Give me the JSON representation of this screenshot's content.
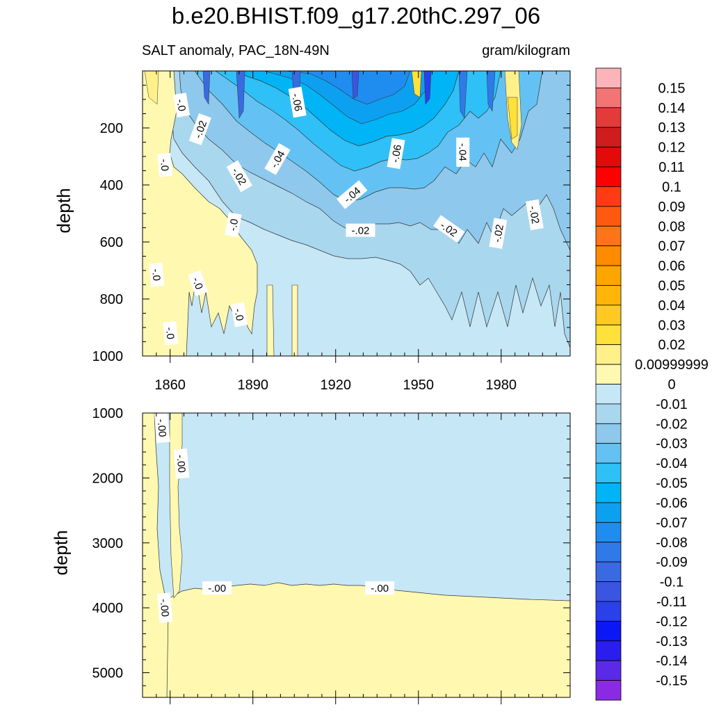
{
  "figure": {
    "title": "b.e20.BHIST.f09_g17.20thC.297_06",
    "subtitle_left": "SALT anomaly, PAC_18N-49N",
    "subtitle_right": "gram/kilogram"
  },
  "chart_data": [
    {
      "type": "contour",
      "panel": "upper",
      "ylabel": "depth",
      "xlabel": "",
      "xlim": [
        1850,
        2005
      ],
      "ylim": [
        1000,
        0
      ],
      "xticks": [
        1860,
        1890,
        1920,
        1950,
        1980
      ],
      "xtick_labels": [
        "1860",
        "1890",
        "1920",
        "1950",
        "1980"
      ],
      "yticks": [
        200,
        400,
        600,
        800,
        1000
      ],
      "ytick_labels": [
        "200",
        "400",
        "600",
        "800",
        "1000"
      ],
      "contour_labels": [
        {
          "text": "-.0",
          "x": 1864,
          "y": 120,
          "angle": 80
        },
        {
          "text": "-.02",
          "x": 1871,
          "y": 205,
          "angle": -70
        },
        {
          "text": "-.0",
          "x": 1858,
          "y": 330,
          "angle": 85
        },
        {
          "text": "-.06",
          "x": 1906,
          "y": 110,
          "angle": 80
        },
        {
          "text": "-.04",
          "x": 1899,
          "y": 310,
          "angle": -60
        },
        {
          "text": "-.02",
          "x": 1885,
          "y": 370,
          "angle": 60
        },
        {
          "text": "-.06",
          "x": 1942,
          "y": 290,
          "angle": -80
        },
        {
          "text": "-.04",
          "x": 1966,
          "y": 285,
          "angle": 90
        },
        {
          "text": "-.04",
          "x": 1926,
          "y": 435,
          "angle": -40
        },
        {
          "text": "-.0",
          "x": 1883,
          "y": 540,
          "angle": -80
        },
        {
          "text": "-.02",
          "x": 1929,
          "y": 560,
          "angle": 0
        },
        {
          "text": "-.02",
          "x": 1961,
          "y": 555,
          "angle": 35
        },
        {
          "text": "-.02",
          "x": 1979,
          "y": 570,
          "angle": -80
        },
        {
          "text": "-.02",
          "x": 1992,
          "y": 505,
          "angle": 80
        },
        {
          "text": "-.0",
          "x": 1855,
          "y": 715,
          "angle": 85
        },
        {
          "text": "-.0",
          "x": 1870,
          "y": 745,
          "angle": 70
        },
        {
          "text": "-.0",
          "x": 1885,
          "y": 855,
          "angle": 80
        },
        {
          "text": "-.0",
          "x": 1860,
          "y": 920,
          "angle": 85
        }
      ]
    },
    {
      "type": "contour",
      "panel": "lower",
      "ylabel": "depth",
      "xlabel": "",
      "xlim": [
        1850,
        2005
      ],
      "ylim": [
        5380,
        1000
      ],
      "xticks": [
        1860,
        1890,
        1920,
        1950,
        1980
      ],
      "yticks": [
        1000,
        2000,
        3000,
        4000,
        5000
      ],
      "ytick_labels": [
        "1000",
        "2000",
        "3000",
        "4000",
        "5000"
      ],
      "contour_labels": [
        {
          "text": "-.00",
          "x": 1857,
          "y": 1230,
          "angle": 85
        },
        {
          "text": "-.00",
          "x": 1864,
          "y": 1780,
          "angle": 85
        },
        {
          "text": "-.00",
          "x": 1877,
          "y": 3700,
          "angle": 0
        },
        {
          "text": "-.00",
          "x": 1936,
          "y": 3700,
          "angle": 0
        },
        {
          "text": "-.00",
          "x": 1858,
          "y": 4000,
          "angle": 85
        }
      ]
    },
    {
      "type": "colorbar",
      "levels": [
        {
          "label": "0.15",
          "color": "#fbb4b9"
        },
        {
          "label": "0.14",
          "color": "#f37474"
        },
        {
          "label": "0.13",
          "color": "#e33a3a"
        },
        {
          "label": "0.12",
          "color": "#cf1c1c"
        },
        {
          "label": "0.11",
          "color": "#e40a0a"
        },
        {
          "label": "0.1",
          "color": "#ff0000"
        },
        {
          "label": "0.09",
          "color": "#ff3b16"
        },
        {
          "label": "0.08",
          "color": "#ff5a10"
        },
        {
          "label": "0.07",
          "color": "#ff7418"
        },
        {
          "label": "0.06",
          "color": "#ff8c00"
        },
        {
          "label": "0.05",
          "color": "#ffa500"
        },
        {
          "label": "0.04",
          "color": "#ffb50a"
        },
        {
          "label": "0.03",
          "color": "#ffc924"
        },
        {
          "label": "0.02",
          "color": "#ffe13a"
        },
        {
          "label": "0.00999999",
          "color": "#fff08a"
        },
        {
          "label": "0",
          "color": "#fff8b0"
        },
        {
          "label": "-0.01",
          "color": "#c6e7f5"
        },
        {
          "label": "-0.02",
          "color": "#a9d7ee"
        },
        {
          "label": "-0.03",
          "color": "#8ec8ec"
        },
        {
          "label": "-0.04",
          "color": "#63c2f3"
        },
        {
          "label": "-0.05",
          "color": "#2fc0f7"
        },
        {
          "label": "-0.06",
          "color": "#00b4f5"
        },
        {
          "label": "-0.07",
          "color": "#0ea0f0"
        },
        {
          "label": "-0.08",
          "color": "#1f8df0"
        },
        {
          "label": "-0.09",
          "color": "#2f7ae8"
        },
        {
          "label": "-0.1",
          "color": "#3a6ae2"
        },
        {
          "label": "-0.11",
          "color": "#3a55e0"
        },
        {
          "label": "-0.12",
          "color": "#2a40e8"
        },
        {
          "label": "-0.13",
          "color": "#0b18f5"
        },
        {
          "label": "-0.14",
          "color": "#2a1df0"
        },
        {
          "label": "-0.15",
          "color": "#5b2ae8"
        },
        {
          "label": "",
          "color": "#8a2be2"
        }
      ]
    }
  ]
}
